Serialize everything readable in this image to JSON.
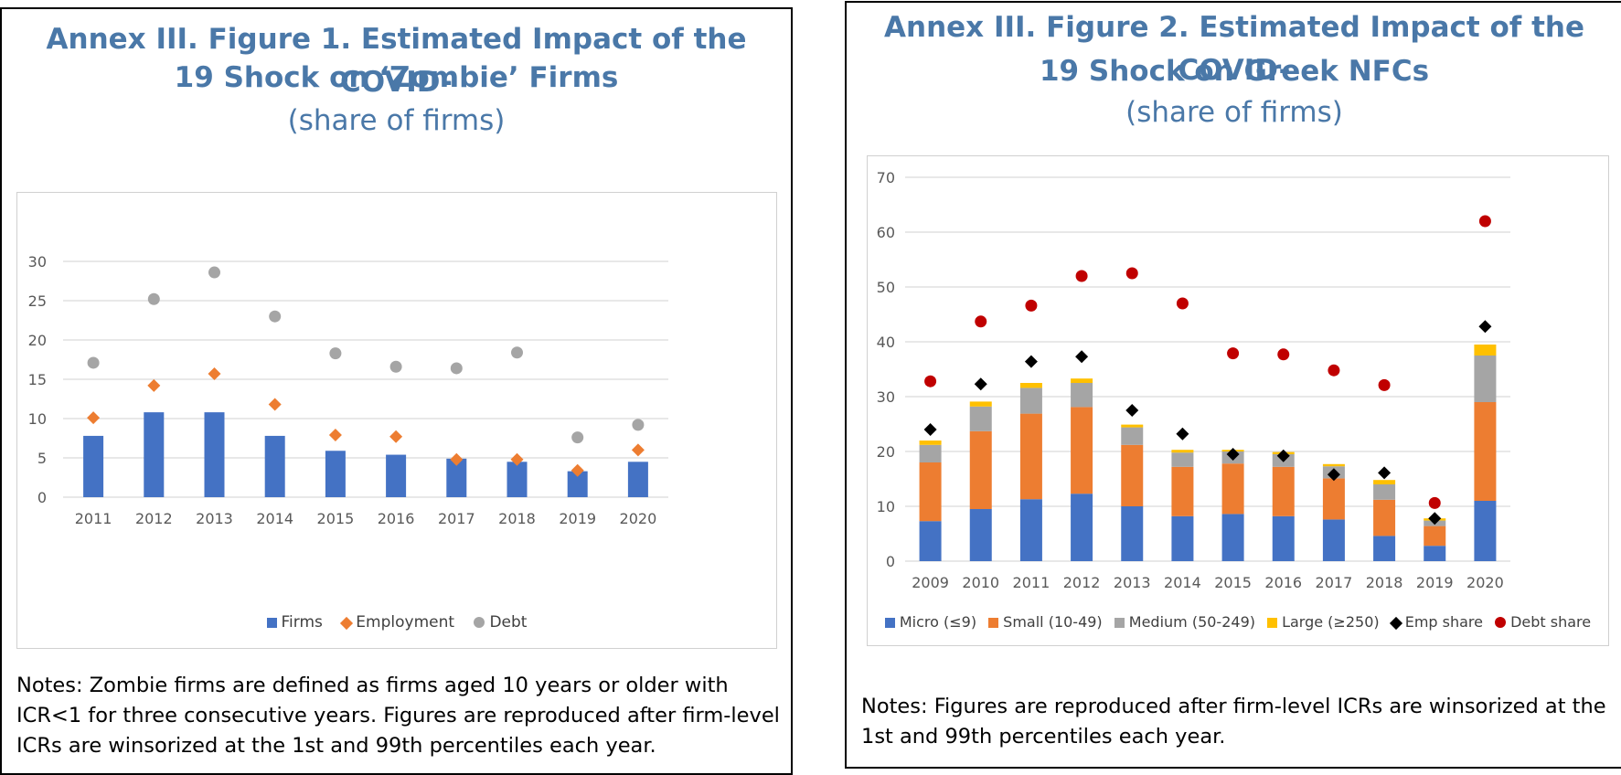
{
  "figure1": {
    "title_line1": "Annex III. Figure 1. Estimated Impact of the COVID-",
    "title_line2": "19 Shock on ‘Zombie’ Firms",
    "subtitle": "(share of firms)",
    "notes_line1": "Notes: Zombie firms are defined as firms aged 10 years or older with",
    "notes_line2": "ICR<1 for three consecutive years. Figures are reproduced after firm-level",
    "notes_line3": "ICRs are winsorized at the 1st and 99th percentiles each year.",
    "legend": [
      "Firms",
      "Employment",
      "Debt"
    ]
  },
  "figure2": {
    "title_line1": "Annex III. Figure 2. Estimated Impact of the COVID-",
    "title_line2": "19 Shock on Greek NFCs",
    "subtitle": "(share of firms)",
    "notes_line1": "Notes: Figures are reproduced after firm-level ICRs are winsorized at the",
    "notes_line2": "1st and 99th percentiles each year.",
    "legend": [
      "Micro (≤9)",
      "Small (10-49)",
      "Medium (50-249)",
      "Large (≥250)",
      "Emp share",
      "Debt share"
    ]
  },
  "colors": {
    "title": "#4a78a8",
    "firms": "#4472c4",
    "employment": "#ed7d31",
    "debt": "#a5a5a5",
    "micro": "#4472c4",
    "small": "#ed7d31",
    "medium": "#a5a5a5",
    "large": "#ffc000",
    "emp_share": "#000000",
    "debt_share": "#c00000"
  },
  "chart_data": [
    {
      "type": "bar",
      "title": "Annex III. Figure 1. Estimated Impact of the COVID-19 Shock on ‘Zombie’ Firms",
      "subtitle": "(share of firms)",
      "categories": [
        "2011",
        "2012",
        "2013",
        "2014",
        "2015",
        "2016",
        "2017",
        "2018",
        "2019",
        "2020"
      ],
      "series": [
        {
          "name": "Firms",
          "kind": "bar",
          "values": [
            7.8,
            10.8,
            10.8,
            7.8,
            5.9,
            5.4,
            4.9,
            4.5,
            3.3,
            4.5
          ]
        },
        {
          "name": "Employment",
          "kind": "diamond",
          "values": [
            10.1,
            14.2,
            15.7,
            11.8,
            7.9,
            7.7,
            4.8,
            4.8,
            3.4,
            6.0
          ]
        },
        {
          "name": "Debt",
          "kind": "circle",
          "values": [
            17.1,
            25.2,
            28.6,
            23.0,
            18.3,
            16.6,
            16.4,
            18.4,
            7.6,
            9.2
          ]
        }
      ],
      "yticks": [
        0,
        5,
        10,
        15,
        20,
        25,
        30
      ],
      "ylim": [
        0,
        30
      ],
      "legend": "bottom",
      "grid": true
    },
    {
      "type": "bar",
      "stacked": true,
      "title": "Annex III. Figure 2. Estimated Impact of the COVID-19 Shock on Greek NFCs",
      "subtitle": "(share of firms)",
      "categories": [
        "2009",
        "2010",
        "2011",
        "2012",
        "2013",
        "2014",
        "2015",
        "2016",
        "2017",
        "2018",
        "2019",
        "2020"
      ],
      "series": [
        {
          "name": "Micro (≤9)",
          "kind": "bar",
          "values": [
            7.3,
            9.5,
            11.3,
            12.3,
            10.0,
            8.2,
            8.6,
            8.2,
            7.6,
            4.6,
            2.8,
            11.0
          ]
        },
        {
          "name": "Small (10-49)",
          "kind": "bar",
          "values": [
            10.7,
            14.2,
            15.6,
            15.8,
            11.2,
            9.0,
            9.2,
            9.0,
            7.5,
            6.6,
            3.6,
            18.0
          ]
        },
        {
          "name": "Medium (50-249)",
          "kind": "bar",
          "values": [
            3.2,
            4.5,
            4.7,
            4.4,
            3.2,
            2.6,
            2.2,
            2.3,
            2.2,
            2.8,
            1.0,
            8.5
          ]
        },
        {
          "name": "Large (≥250)",
          "kind": "bar",
          "values": [
            0.8,
            0.9,
            0.9,
            0.8,
            0.5,
            0.5,
            0.3,
            0.4,
            0.4,
            0.8,
            0.4,
            2.0
          ]
        },
        {
          "name": "Emp share",
          "kind": "diamond",
          "values": [
            24.0,
            32.3,
            36.4,
            37.3,
            27.5,
            23.2,
            19.5,
            19.2,
            15.8,
            16.1,
            7.8,
            42.8
          ]
        },
        {
          "name": "Debt share",
          "kind": "circle",
          "values": [
            32.8,
            43.7,
            46.6,
            52.0,
            52.5,
            47.0,
            37.9,
            37.7,
            34.8,
            32.1,
            10.6,
            62.0
          ]
        }
      ],
      "yticks": [
        0,
        10,
        20,
        30,
        40,
        50,
        60,
        70
      ],
      "ylim": [
        0,
        70
      ],
      "legend": "bottom",
      "grid": true
    }
  ]
}
